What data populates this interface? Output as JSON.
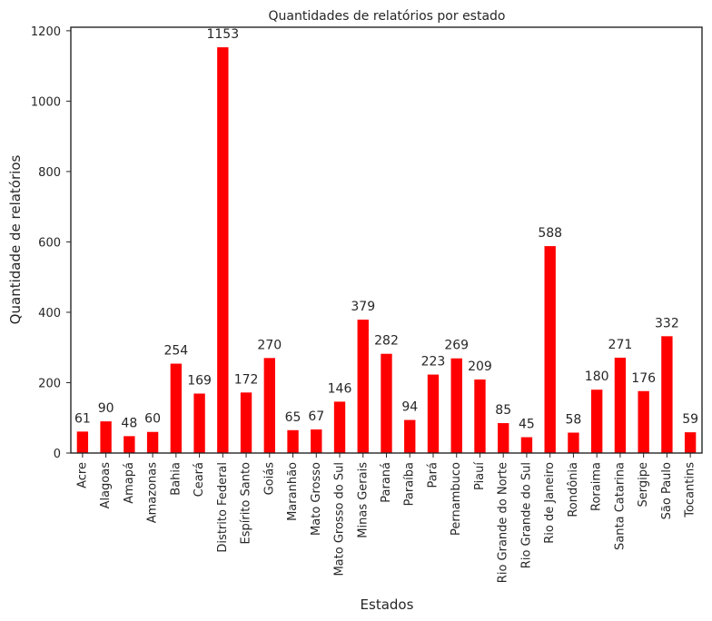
{
  "chart_data": {
    "type": "bar",
    "title": "Quantidades de relatórios por estado",
    "xlabel": "Estados",
    "ylabel": "Quantidade de relatórios",
    "ylim": [
      0,
      1210
    ],
    "yticks": [
      "0",
      "200",
      "400",
      "600",
      "800",
      "1000",
      "1200"
    ],
    "grid": false,
    "bar_color": "#ff0000",
    "categories": [
      "Acre",
      "Alagoas",
      "Amapá",
      "Amazonas",
      "Bahia",
      "Ceará",
      "Distrito Federal",
      "Espírito Santo",
      "Goiás",
      "Maranhão",
      "Mato Grosso",
      "Mato Grosso do Sul",
      "Minas Gerais",
      "Paraná",
      "Paraíba",
      "Pará",
      "Pernambuco",
      "Piauí",
      "Rio Grande do Norte",
      "Rio Grande do Sul",
      "Rio de Janeiro",
      "Rondônia",
      "Roraima",
      "Santa Catarina",
      "Sergipe",
      "São Paulo",
      "Tocantins"
    ],
    "values": [
      61,
      90,
      48,
      60,
      254,
      169,
      1153,
      172,
      270,
      65,
      67,
      146,
      379,
      282,
      94,
      223,
      269,
      209,
      85,
      45,
      588,
      58,
      180,
      271,
      176,
      332,
      59
    ],
    "data_labels": [
      "61",
      "90",
      "48",
      "60",
      "254",
      "169",
      "1153",
      "172",
      "270",
      "65",
      "67",
      "146",
      "379",
      "282",
      "94",
      "223",
      "269",
      "209",
      "85",
      "45",
      "588",
      "58",
      "180",
      "271",
      "176",
      "332",
      "59"
    ]
  }
}
